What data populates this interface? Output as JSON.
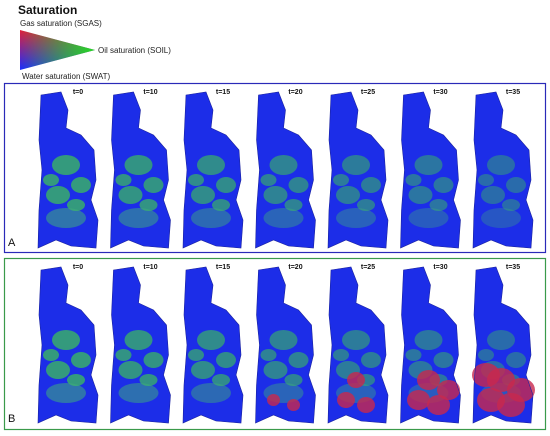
{
  "title": "Saturation",
  "legend": {
    "gas": "Gas saturation (SGAS)",
    "oil": "Oil saturation (SOIL)",
    "water": "Water saturation (SWAT)"
  },
  "panels": [
    {
      "label": "A",
      "times": [
        "t=0",
        "t=10",
        "t=15",
        "t=20",
        "t=25",
        "t=30",
        "t=35"
      ]
    },
    {
      "label": "B",
      "times": [
        "t=0",
        "t=10",
        "t=15",
        "t=20",
        "t=25",
        "t=30",
        "t=35"
      ]
    }
  ]
}
